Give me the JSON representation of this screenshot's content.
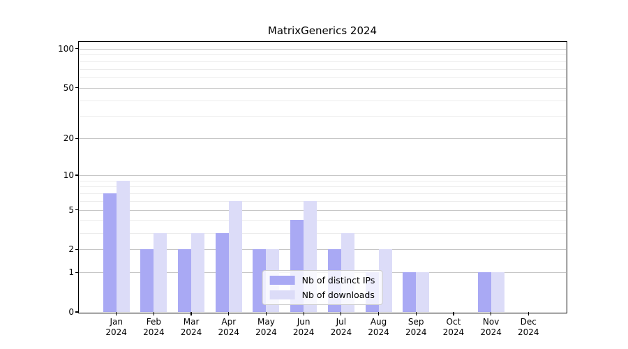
{
  "chart_data": {
    "type": "bar",
    "title": "MatrixGenerics 2024",
    "categories": [
      "Jan",
      "Feb",
      "Mar",
      "Apr",
      "May",
      "Jun",
      "Jul",
      "Aug",
      "Sep",
      "Oct",
      "Nov",
      "Dec"
    ],
    "category_year": "2024",
    "series": [
      {
        "name": "Nb of distinct IPs",
        "color": "#a9a9f4",
        "values": [
          7,
          2,
          2,
          3,
          2,
          4,
          2,
          1,
          1,
          0,
          1,
          0
        ]
      },
      {
        "name": "Nb of downloads",
        "color": "#dcdcf8",
        "values": [
          9,
          3,
          3,
          6,
          2,
          6,
          3,
          2,
          1,
          0,
          1,
          0
        ]
      }
    ],
    "xlabel": "",
    "ylabel": "",
    "yscale": "log1p",
    "ylim": [
      0,
      113
    ],
    "y_major_ticks": [
      100,
      50,
      20,
      10,
      5,
      2,
      1,
      0
    ],
    "y_minor_gridlines": [
      3,
      4,
      6,
      7,
      8,
      9,
      30,
      40,
      60,
      70,
      80,
      90
    ],
    "grid": true,
    "legend_position": "lower center",
    "colors": {
      "axis": "#000000",
      "grid_major": "#c6c6c6",
      "grid_minor": "#ececec",
      "background": "#ffffff"
    }
  }
}
